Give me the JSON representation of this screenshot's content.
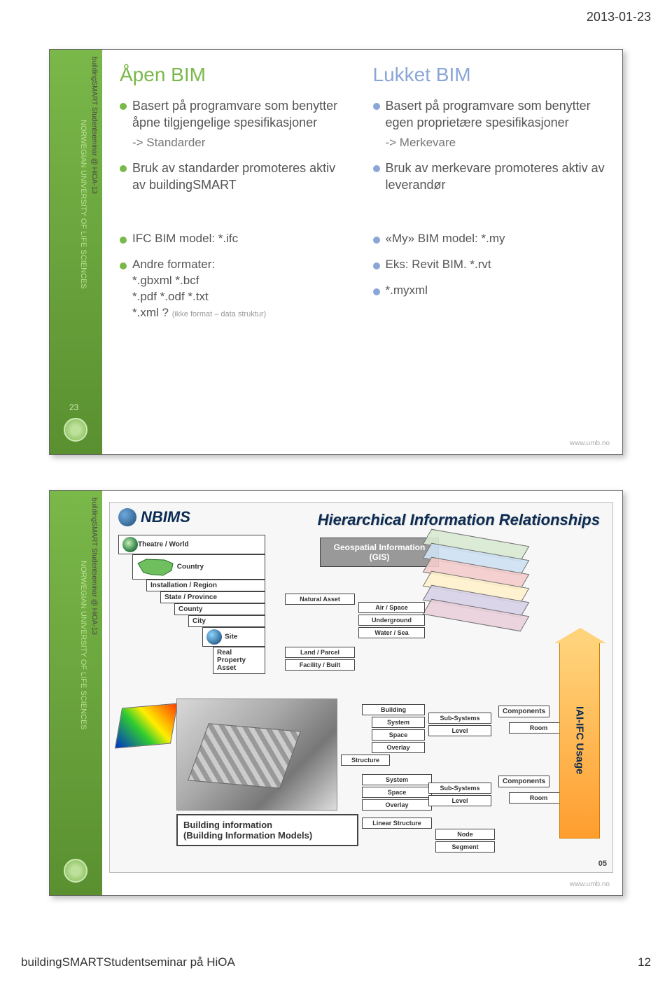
{
  "page": {
    "date": "2013-01-23",
    "footer": "buildingSMARTStudentseminar på HiOA",
    "pagenum": "12"
  },
  "sidebar": {
    "org": "NORWEGIAN UNIVERSITY OF LIFE SCIENCES",
    "event": "buildingSMART Studentseminar @ HiOA-13",
    "slide1_num": "23"
  },
  "slide1": {
    "left_title": "Åpen BIM",
    "right_title": "Lukket BIM",
    "left_items": [
      "Basert på programvare som benytter åpne tilgjengelige spesifikasjoner",
      "Bruk av standarder promoteres aktiv av buildingSMART"
    ],
    "left_sub": "-> Standarder",
    "right_items": [
      "Basert  på programvare som benytter egen proprietære spesifikasjoner",
      "Bruk av merkevare promoteres aktiv av leverandør"
    ],
    "right_sub": "-> Merkevare",
    "lower_left": [
      "IFC BIM model:  *.ifc",
      "Andre formater:\n*.gbxml   *.bcf\n*.pdf  *.odf  *.txt\n*.xml ?"
    ],
    "lower_left_tiny": "(ikke format – data struktur)",
    "lower_right": [
      "«My» BIM model:  *.my",
      "Eks: Revit BIM. *.rvt",
      "*.myxml"
    ],
    "url": "www.umb.no"
  },
  "slide2": {
    "logo": "NBIMS",
    "title": "Hierarchical Information Relationships",
    "geobox": "Geospatial Information (GIS)",
    "hier": [
      "Theatre / World",
      "Country",
      "Installation / Region",
      "State / Province",
      "County",
      "City",
      "Site",
      "Real Property Asset"
    ],
    "nat": [
      "Natural Asset",
      "",
      "Land / Parcel",
      "Facility / Built"
    ],
    "nat_right": [
      "Air / Space",
      "Underground",
      "Water / Sea"
    ],
    "build": [
      "Building",
      "System",
      "Space",
      "Overlay"
    ],
    "struct": "Structure",
    "subsys": [
      "Sub-Systems",
      "Level"
    ],
    "room": "Room",
    "components": "Components",
    "linstruct": [
      "System",
      "Space",
      "Overlay"
    ],
    "linstruct_label": "Linear Structure",
    "subsys2": [
      "Sub-Systems",
      "Level"
    ],
    "room2": "Room",
    "components2": "Components",
    "nodeseg": [
      "Node",
      "Segment"
    ],
    "arrow": "IAI-IFC Usage",
    "bim_label": "Building information\n(Building Information Models)",
    "slide_inner_num": "05",
    "url": "www.umb.no",
    "layer_colors": [
      "#d9ead3",
      "#cfe2f3",
      "#f4cccc",
      "#fff2cc",
      "#d9d2e9",
      "#ead1dc"
    ]
  }
}
